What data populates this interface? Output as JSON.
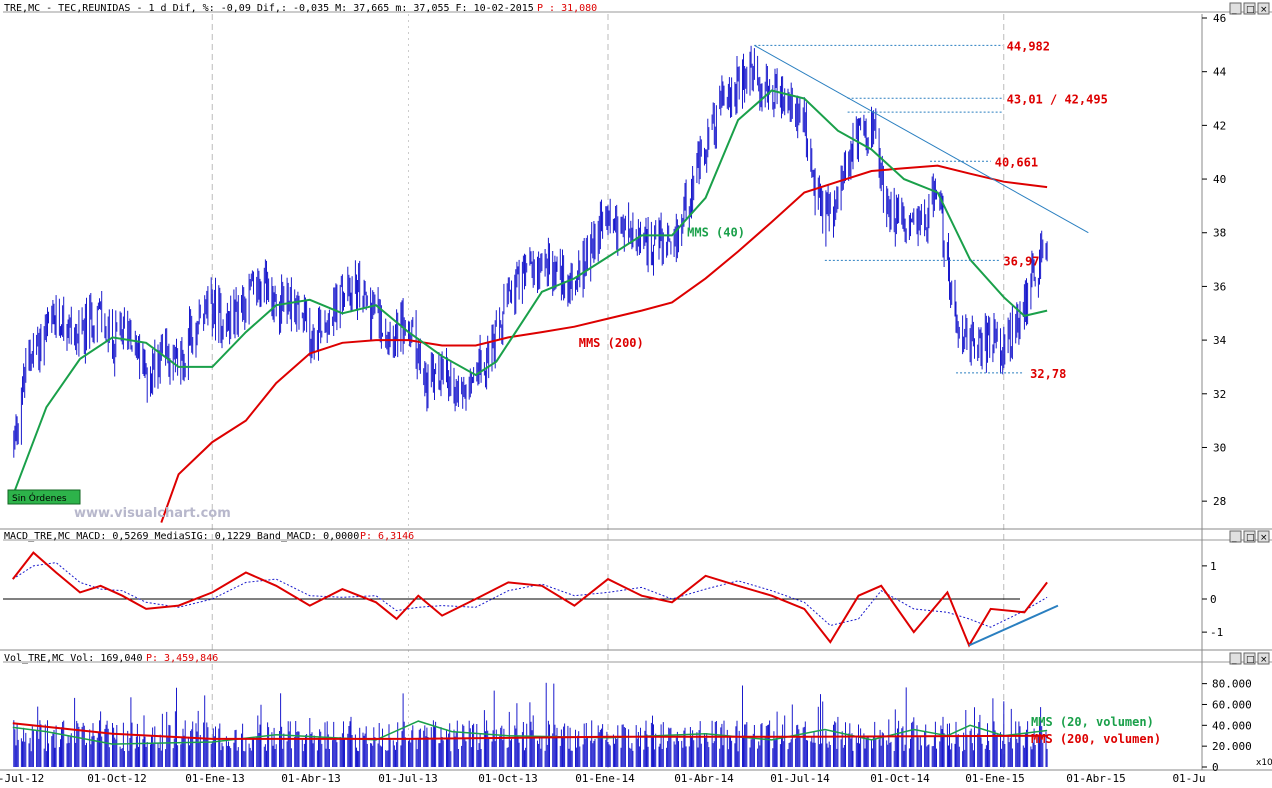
{
  "header": {
    "price_title": "TRE,MC - TEC,REUNIDAS -  1 d Dif, %: -0,09 Dif,: -0,035 M: 37,665 m: 37,055 F: 10-02-2015",
    "price_p": "P : 31,080",
    "macd_title": "MACD_TRE,MC MACD: 0,5269 MediaSIG: 0,1229 Band_MACD: 0,0000",
    "macd_p": "P: 6,3146",
    "vol_title": "Vol_TRE,MC Vol: 169,040",
    "vol_p": "P: 3,459,846"
  },
  "watermark": "www.visualchart.com",
  "badge": "Sin Órdenes",
  "x10_label": "x10",
  "colors": {
    "price_bars": "#1a1acc",
    "mms40": "#1aa04a",
    "mms200": "#dd0000",
    "trendline": "#2a7fc0",
    "level_line": "#2a7fc0",
    "macd": "#dd0000",
    "signal": "#1a1acc",
    "volume": "#1a1acc",
    "badge_bg": "#2db34a"
  },
  "chart_data": [
    {
      "type": "candlestick",
      "panel": "price",
      "title": "TRE,MC - TEC,REUNIDAS",
      "ylim": [
        27,
        46
      ],
      "yticks": [
        "28",
        "30",
        "32",
        "34",
        "36",
        "38",
        "40",
        "42",
        "44",
        "46"
      ],
      "x_labels": [
        "-Jul-12",
        "01-Oct-12",
        "01-Ene-13",
        "01-Abr-13",
        "01-Jul-13",
        "01-Oct-13",
        "01-Ene-14",
        "01-Abr-14",
        "01-Jul-14",
        "01-Oct-14",
        "01-Ene-15",
        "01-Abr-15",
        "01-Ju"
      ],
      "price_path": [
        [
          "2012-07-01",
          30.0
        ],
        [
          "2012-07-16",
          33.5
        ],
        [
          "2012-08-01",
          34.3
        ],
        [
          "2012-08-16",
          34.8
        ],
        [
          "2012-09-01",
          34.0
        ],
        [
          "2012-09-16",
          35.2
        ],
        [
          "2012-10-01",
          33.8
        ],
        [
          "2012-10-16",
          34.6
        ],
        [
          "2012-11-01",
          32.5
        ],
        [
          "2012-11-16",
          33.8
        ],
        [
          "2012-12-01",
          33.0
        ],
        [
          "2012-12-16",
          34.5
        ],
        [
          "2013-01-01",
          35.2
        ],
        [
          "2013-01-16",
          34.6
        ],
        [
          "2013-02-01",
          35.6
        ],
        [
          "2013-02-16",
          36.0
        ],
        [
          "2013-03-01",
          35.4
        ],
        [
          "2013-03-16",
          35.5
        ],
        [
          "2013-04-01",
          34.2
        ],
        [
          "2013-04-16",
          34.8
        ],
        [
          "2013-05-01",
          35.6
        ],
        [
          "2013-05-16",
          35.8
        ],
        [
          "2013-06-01",
          35.0
        ],
        [
          "2013-06-16",
          34.3
        ],
        [
          "2013-07-01",
          34.4
        ],
        [
          "2013-07-16",
          32.4
        ],
        [
          "2013-08-01",
          32.7
        ],
        [
          "2013-08-16",
          32.1
        ],
        [
          "2013-09-01",
          33.0
        ],
        [
          "2013-09-16",
          33.5
        ],
        [
          "2013-10-01",
          35.5
        ],
        [
          "2013-10-16",
          36.4
        ],
        [
          "2013-11-01",
          37.0
        ],
        [
          "2013-11-16",
          36.6
        ],
        [
          "2013-12-01",
          36.0
        ],
        [
          "2013-12-16",
          37.6
        ],
        [
          "2014-01-01",
          38.7
        ],
        [
          "2014-01-16",
          38.1
        ],
        [
          "2014-02-01",
          37.4
        ],
        [
          "2014-02-16",
          37.8
        ],
        [
          "2014-03-01",
          37.0
        ],
        [
          "2014-03-16",
          39.5
        ],
        [
          "2014-04-01",
          41.0
        ],
        [
          "2014-04-16",
          43.0
        ],
        [
          "2014-05-01",
          43.4
        ],
        [
          "2014-05-16",
          44.0
        ],
        [
          "2014-06-01",
          43.0
        ],
        [
          "2014-06-16",
          42.6
        ],
        [
          "2014-07-01",
          42.0
        ],
        [
          "2014-07-16",
          38.5
        ],
        [
          "2014-08-01",
          39.0
        ],
        [
          "2014-08-16",
          41.5
        ],
        [
          "2014-09-01",
          42.0
        ],
        [
          "2014-09-16",
          39.0
        ],
        [
          "2014-10-01",
          38.0
        ],
        [
          "2014-10-16",
          38.4
        ],
        [
          "2014-11-01",
          39.5
        ],
        [
          "2014-11-16",
          35.0
        ],
        [
          "2014-12-01",
          34.0
        ],
        [
          "2014-12-16",
          34.0
        ],
        [
          "2015-01-01",
          33.8
        ],
        [
          "2015-01-16",
          35.0
        ],
        [
          "2015-02-10",
          37.6
        ]
      ],
      "mms40_path": [
        [
          "2012-07-01",
          28.2
        ],
        [
          "2012-08-01",
          31.5
        ],
        [
          "2012-09-01",
          33.3
        ],
        [
          "2012-10-01",
          34.1
        ],
        [
          "2012-11-01",
          33.9
        ],
        [
          "2012-12-01",
          33.0
        ],
        [
          "2013-01-01",
          33.0
        ],
        [
          "2013-02-01",
          34.3
        ],
        [
          "2013-03-01",
          35.3
        ],
        [
          "2013-04-01",
          35.5
        ],
        [
          "2013-05-01",
          35.0
        ],
        [
          "2013-06-01",
          35.3
        ],
        [
          "2013-07-01",
          34.3
        ],
        [
          "2013-08-01",
          33.4
        ],
        [
          "2013-09-01",
          32.7
        ],
        [
          "2013-09-20",
          33.2
        ],
        [
          "2013-10-16",
          34.8
        ],
        [
          "2013-11-01",
          35.8
        ],
        [
          "2013-12-01",
          36.3
        ],
        [
          "2014-01-01",
          37.1
        ],
        [
          "2014-02-01",
          37.9
        ],
        [
          "2014-03-01",
          37.9
        ],
        [
          "2014-04-01",
          39.3
        ],
        [
          "2014-05-01",
          42.2
        ],
        [
          "2014-06-01",
          43.3
        ],
        [
          "2014-07-01",
          43.0
        ],
        [
          "2014-08-01",
          41.8
        ],
        [
          "2014-09-01",
          41.1
        ],
        [
          "2014-10-01",
          40.0
        ],
        [
          "2014-11-01",
          39.5
        ],
        [
          "2014-12-01",
          37.0
        ],
        [
          "2015-01-01",
          35.6
        ],
        [
          "2015-01-20",
          34.9
        ],
        [
          "2015-02-10",
          35.1
        ]
      ],
      "mms200_path": [
        [
          "2012-11-15",
          27.2
        ],
        [
          "2012-12-01",
          29.0
        ],
        [
          "2013-01-01",
          30.2
        ],
        [
          "2013-02-01",
          31.0
        ],
        [
          "2013-03-01",
          32.4
        ],
        [
          "2013-04-01",
          33.5
        ],
        [
          "2013-05-01",
          33.9
        ],
        [
          "2013-06-01",
          34.0
        ],
        [
          "2013-07-01",
          34.0
        ],
        [
          "2013-08-01",
          33.8
        ],
        [
          "2013-09-01",
          33.8
        ],
        [
          "2013-10-01",
          34.1
        ],
        [
          "2013-11-01",
          34.3
        ],
        [
          "2013-12-01",
          34.5
        ],
        [
          "2014-01-01",
          34.8
        ],
        [
          "2014-02-01",
          35.1
        ],
        [
          "2014-03-01",
          35.4
        ],
        [
          "2014-04-01",
          36.3
        ],
        [
          "2014-05-01",
          37.3
        ],
        [
          "2014-06-01",
          38.4
        ],
        [
          "2014-07-01",
          39.5
        ],
        [
          "2014-08-01",
          39.9
        ],
        [
          "2014-09-01",
          40.3
        ],
        [
          "2014-10-01",
          40.4
        ],
        [
          "2014-11-01",
          40.5
        ],
        [
          "2014-12-01",
          40.2
        ],
        [
          "2015-01-01",
          39.9
        ],
        [
          "2015-02-10",
          39.7
        ]
      ],
      "series_labels": [
        {
          "name": "MMS (40)",
          "date": "2014-03-15",
          "value": 38.0,
          "color": "#1aa04a"
        },
        {
          "name": "MMS (200)",
          "date": "2013-12-05",
          "value": 33.9,
          "color": "#dd0000"
        }
      ],
      "levels": [
        {
          "label": "44,982",
          "value": 44.982,
          "from": "2014-05-16",
          "to": "2014-12-31"
        },
        {
          "label": "43,01 / 42,495",
          "value": 43.01,
          "value2": 42.495,
          "from": "2014-08-10",
          "to": "2014-12-31"
        },
        {
          "label": "40,661",
          "value": 40.661,
          "from": "2014-10-25",
          "to": "2014-12-20"
        },
        {
          "label": "36,97",
          "value": 36.97,
          "from": "2014-07-20",
          "to": "2014-12-28"
        },
        {
          "label": "32,78",
          "value": 32.78,
          "from": "2014-11-18",
          "to": "2015-01-18"
        }
      ],
      "trendline": [
        [
          "2014-05-16",
          44.98
        ],
        [
          "2015-03-20",
          38.0
        ]
      ]
    },
    {
      "type": "line",
      "panel": "macd",
      "title": "MACD_TRE,MC",
      "ylim": [
        -1.6,
        1.6
      ],
      "yticks": [
        "1",
        "0",
        "-1"
      ],
      "macd": [
        [
          "2012-07-01",
          0.6
        ],
        [
          "2012-07-20",
          1.4
        ],
        [
          "2012-08-10",
          0.8
        ],
        [
          "2012-09-01",
          0.2
        ],
        [
          "2012-09-20",
          0.4
        ],
        [
          "2012-10-10",
          0.1
        ],
        [
          "2012-11-01",
          -0.3
        ],
        [
          "2012-12-01",
          -0.2
        ],
        [
          "2013-01-01",
          0.2
        ],
        [
          "2013-02-01",
          0.8
        ],
        [
          "2013-03-01",
          0.4
        ],
        [
          "2013-04-01",
          -0.2
        ],
        [
          "2013-05-01",
          0.3
        ],
        [
          "2013-06-01",
          -0.1
        ],
        [
          "2013-06-20",
          -0.6
        ],
        [
          "2013-07-10",
          0.1
        ],
        [
          "2013-08-01",
          -0.5
        ],
        [
          "2013-09-01",
          0.0
        ],
        [
          "2013-10-01",
          0.5
        ],
        [
          "2013-11-01",
          0.4
        ],
        [
          "2013-12-01",
          -0.2
        ],
        [
          "2014-01-01",
          0.6
        ],
        [
          "2014-02-01",
          0.1
        ],
        [
          "2014-03-01",
          -0.1
        ],
        [
          "2014-04-01",
          0.7
        ],
        [
          "2014-05-01",
          0.4
        ],
        [
          "2014-06-01",
          0.1
        ],
        [
          "2014-07-01",
          -0.3
        ],
        [
          "2014-07-25",
          -1.3
        ],
        [
          "2014-08-20",
          0.1
        ],
        [
          "2014-09-10",
          0.4
        ],
        [
          "2014-10-10",
          -1.0
        ],
        [
          "2014-11-10",
          0.2
        ],
        [
          "2014-11-30",
          -1.4
        ],
        [
          "2014-12-20",
          -0.3
        ],
        [
          "2015-01-20",
          -0.4
        ],
        [
          "2015-02-10",
          0.5
        ]
      ],
      "trendline": [
        [
          "2014-11-30",
          -1.4
        ],
        [
          "2015-02-20",
          -0.2
        ]
      ]
    },
    {
      "type": "bar",
      "panel": "volume",
      "title": "Vol_TRE,MC",
      "ylim": [
        0,
        95000
      ],
      "yticks": [
        "80.000",
        "60.000",
        "40.000",
        "20.000",
        "0"
      ],
      "mms20": [
        [
          "2012-07-01",
          38000
        ],
        [
          "2012-08-01",
          34000
        ],
        [
          "2012-10-01",
          22000
        ],
        [
          "2013-01-01",
          24000
        ],
        [
          "2013-03-01",
          31000
        ],
        [
          "2013-06-01",
          26000
        ],
        [
          "2013-07-10",
          44000
        ],
        [
          "2013-08-10",
          34000
        ],
        [
          "2013-10-01",
          30000
        ],
        [
          "2014-01-01",
          28000
        ],
        [
          "2014-04-01",
          32000
        ],
        [
          "2014-06-01",
          26000
        ],
        [
          "2014-07-20",
          36000
        ],
        [
          "2014-09-01",
          26000
        ],
        [
          "2014-10-10",
          36000
        ],
        [
          "2014-11-10",
          30000
        ],
        [
          "2014-12-01",
          40000
        ],
        [
          "2015-01-01",
          30000
        ],
        [
          "2015-02-10",
          35000
        ]
      ],
      "mms200": [
        [
          "2012-07-01",
          42000
        ],
        [
          "2012-10-01",
          32000
        ],
        [
          "2013-01-01",
          27000
        ],
        [
          "2013-07-01",
          27000
        ],
        [
          "2014-01-01",
          29000
        ],
        [
          "2014-07-01",
          29000
        ],
        [
          "2015-02-10",
          30000
        ]
      ],
      "series_labels": [
        {
          "name": "MMS (20, volumen)",
          "color": "#1aa04a"
        },
        {
          "name": "MMS (200, volumen)",
          "color": "#dd0000"
        }
      ]
    }
  ]
}
